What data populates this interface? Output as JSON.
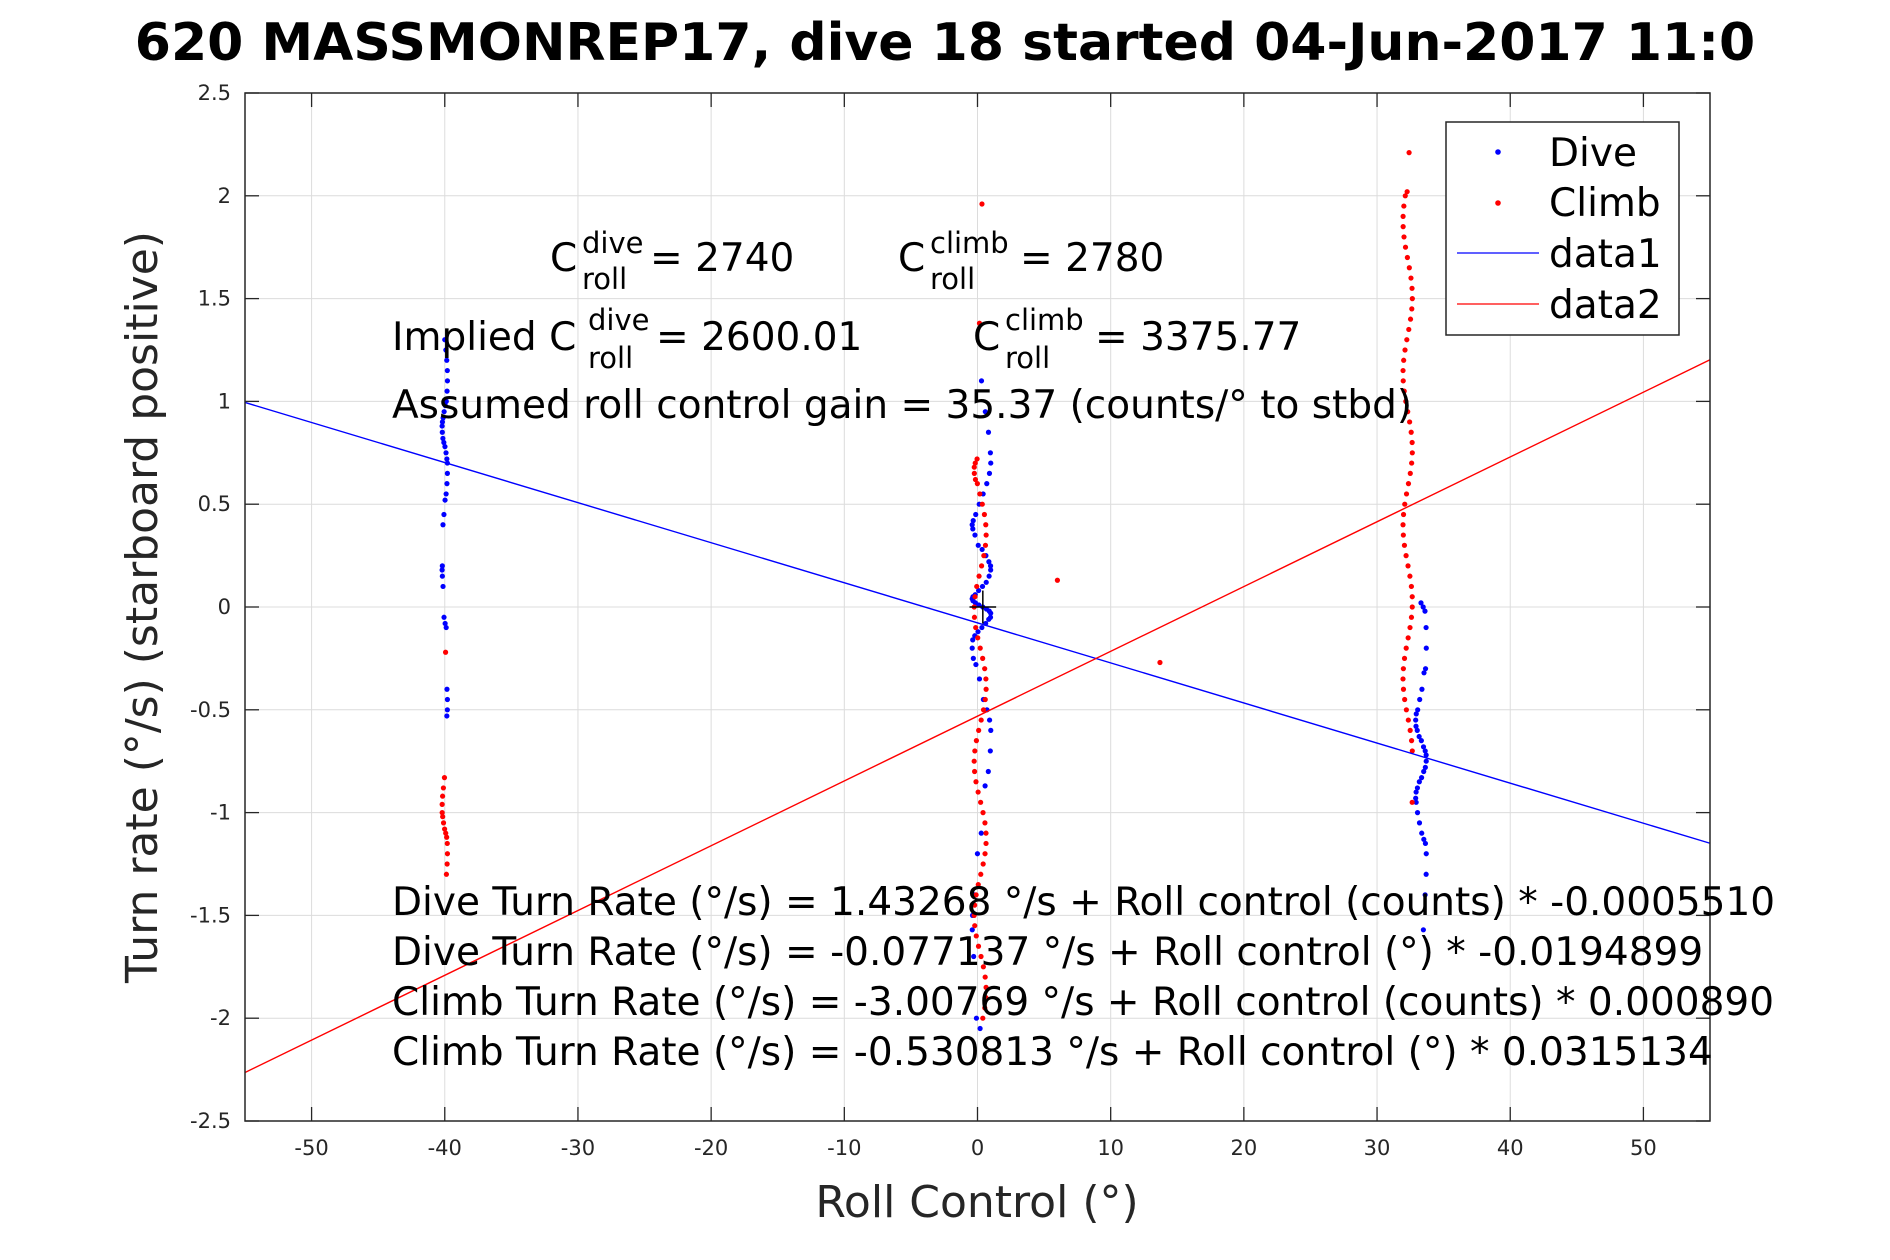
{
  "chart_data": {
    "type": "scatter",
    "title": "620 MASSMONREP17, dive 18 started 04-Jun-2017 11:0",
    "xlabel": "Roll Control (°)",
    "ylabel": "Turn rate (°/s) (starboard positive)",
    "xlim": [
      -55,
      55
    ],
    "ylim": [
      -2.5,
      2.5
    ],
    "xticks": [
      -50,
      -40,
      -30,
      -20,
      -10,
      0,
      10,
      20,
      30,
      40,
      50
    ],
    "yticks": [
      -2.5,
      -2,
      -1.5,
      -1,
      -0.5,
      0,
      0.5,
      1,
      1.5,
      2,
      2.5
    ],
    "grid": true,
    "legend_position": "top-right",
    "colors": {
      "dive": "#0000ff",
      "climb": "#ff0000"
    },
    "series": [
      {
        "name": "Dive",
        "kind": "points",
        "color": "#0000ff",
        "clusters": [
          {
            "x": -40.0,
            "x_spread": 0.4,
            "y": [
              1.3,
              1.25,
              1.2,
              1.15,
              1.1,
              1.05,
              1.0,
              0.98,
              0.95,
              0.92,
              0.9,
              0.88,
              0.85,
              0.82,
              0.8,
              0.78,
              0.75,
              0.72,
              0.7,
              0.65,
              0.6,
              0.55,
              0.52,
              0.45,
              0.4,
              0.2,
              0.18,
              0.15,
              0.1,
              -0.05,
              -0.08,
              -0.1,
              -0.4,
              -0.45,
              -0.5,
              -0.53
            ]
          },
          {
            "x": 0.3,
            "x_spread": 1.4,
            "y": [
              1.1,
              0.95,
              0.85,
              0.75,
              0.7,
              0.65,
              0.6,
              0.55,
              0.5,
              0.45,
              0.42,
              0.4,
              0.38,
              0.35,
              0.3,
              0.28,
              0.25,
              0.22,
              0.2,
              0.18,
              0.15,
              0.12,
              0.1,
              0.08,
              0.06,
              0.05,
              0.04,
              0.03,
              0.02,
              0.01,
              0,
              -0.01,
              -0.02,
              -0.03,
              -0.05,
              -0.06,
              -0.08,
              -0.1,
              -0.12,
              -0.14,
              -0.16,
              -0.2,
              -0.25,
              -0.28,
              -0.35,
              -0.45,
              -0.5,
              -0.55,
              -0.6,
              -0.7,
              -0.8,
              -0.87,
              -1.1,
              -1.2,
              -1.4,
              -1.5,
              -1.57,
              -1.7,
              -2.0,
              -2.05
            ]
          },
          {
            "x": 33.3,
            "x_spread": 0.8,
            "y": [
              0.02,
              0,
              -0.02,
              -0.1,
              -0.2,
              -0.3,
              -0.32,
              -0.4,
              -0.45,
              -0.5,
              -0.52,
              -0.55,
              -0.58,
              -0.6,
              -0.63,
              -0.65,
              -0.68,
              -0.7,
              -0.72,
              -0.75,
              -0.78,
              -0.8,
              -0.83,
              -0.85,
              -0.88,
              -0.9,
              -0.93,
              -0.95,
              -1.0,
              -1.05,
              -1.1,
              -1.13,
              -1.15,
              -1.2,
              -1.3,
              -1.4,
              -1.57
            ]
          }
        ]
      },
      {
        "name": "Climb",
        "kind": "points",
        "color": "#ff0000",
        "clusters": [
          {
            "x": -40.0,
            "x_spread": 0.4,
            "y": [
              -0.22,
              -0.83,
              -0.88,
              -0.92,
              -0.96,
              -1.0,
              -1.02,
              -1.05,
              -1.08,
              -1.1,
              -1.12,
              -1.15,
              -1.2,
              -1.25,
              -1.3
            ]
          },
          {
            "x": 0.2,
            "x_spread": 0.9,
            "y": [
              1.96,
              1.38,
              0.72,
              0.7,
              0.68,
              0.65,
              0.62,
              0.6,
              0.55,
              0.5,
              0.45,
              0.4,
              0.35,
              0.3,
              0.25,
              0.2,
              0.15,
              0.1,
              0.05,
              0,
              -0.05,
              -0.1,
              -0.15,
              -0.2,
              -0.25,
              -0.3,
              -0.35,
              -0.4,
              -0.45,
              -0.5,
              -0.55,
              -0.6,
              -0.65,
              -0.7,
              -0.75,
              -0.8,
              -0.85,
              -0.9,
              -0.95,
              -1.0,
              -1.05,
              -1.1,
              -1.15,
              -1.2,
              -1.25,
              -1.3,
              -1.35,
              -1.4,
              -1.45,
              -1.5,
              -1.55,
              -1.6,
              -1.65,
              -1.7,
              -1.75,
              -1.8,
              -1.85,
              -1.9,
              -1.95,
              -2.0
            ]
          },
          {
            "x": 32.3,
            "x_spread": 0.7,
            "y": [
              2.21,
              2.02,
              2.0,
              1.95,
              1.9,
              1.85,
              1.8,
              1.75,
              1.7,
              1.65,
              1.6,
              1.55,
              1.5,
              1.45,
              1.4,
              1.35,
              1.3,
              1.25,
              1.2,
              1.15,
              1.1,
              1.05,
              1.0,
              0.95,
              0.9,
              0.85,
              0.8,
              0.75,
              0.7,
              0.65,
              0.6,
              0.55,
              0.5,
              0.45,
              0.4,
              0.35,
              0.3,
              0.25,
              0.2,
              0.15,
              0.1,
              0.05,
              0,
              -0.05,
              -0.1,
              -0.15,
              -0.2,
              -0.25,
              -0.3,
              -0.35,
              -0.4,
              -0.45,
              -0.5,
              -0.55,
              -0.6,
              -0.65,
              -0.7,
              -0.95
            ]
          },
          {
            "x": 6.0,
            "x_spread": 0,
            "y": [
              0.13
            ]
          },
          {
            "x": 13.7,
            "x_spread": 0,
            "y": [
              -0.27
            ]
          }
        ]
      },
      {
        "name": "data1",
        "kind": "line",
        "color": "#0000ff",
        "intercept": -0.077137,
        "slope": -0.0194899,
        "x": [
          -55,
          55
        ]
      },
      {
        "name": "data2",
        "kind": "line",
        "color": "#ff0000",
        "intercept": -0.530813,
        "slope": 0.0315134,
        "x": [
          -55,
          55
        ]
      }
    ],
    "annotations": {
      "c_dive_sym": "C",
      "c_dive_sup": "dive",
      "c_dive_sub": "roll",
      "c_dive_val": " = 2740",
      "c_climb_sym": "C",
      "c_climb_sup": "climb",
      "c_climb_sub": "roll",
      "c_climb_val": " = 2780",
      "implied_prefix": "Implied C",
      "implied_dive_sup": "dive",
      "implied_dive_sub": "roll",
      "implied_dive_val": " = 2600.01",
      "implied_climb_sym": "C",
      "implied_climb_sup": "climb",
      "implied_climb_sub": "roll",
      "implied_climb_val": " = 3375.77",
      "gain": "Assumed roll control gain = 35.37 (counts/° to stbd)",
      "eq1": "Dive Turn Rate (°/s) = 1.43268 °/s + Roll control (counts) * -0.0005510",
      "eq2": "Dive Turn Rate (°/s) = -0.077137 °/s + Roll control (°) * -0.0194899",
      "eq3": "Climb Turn Rate (°/s) = -3.00769 °/s + Roll control (counts) * 0.000890",
      "eq4": "Climb Turn Rate (°/s) = -0.530813 °/s + Roll control (°) * 0.0315134"
    }
  }
}
